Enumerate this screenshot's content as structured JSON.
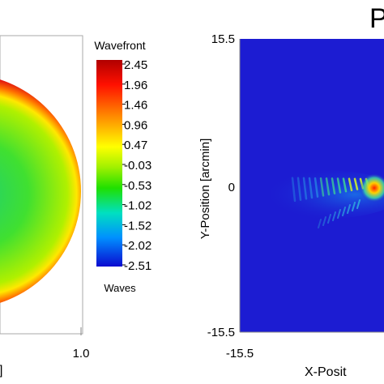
{
  "chart_data": [
    {
      "type": "heatmap",
      "title": "",
      "colorbar": {
        "title": "Wavefront",
        "unit": "Waves",
        "ticks": [
          "2.45",
          "1.96",
          "1.46",
          "0.96",
          "0.47",
          "-0.03",
          "-0.53",
          "-1.02",
          "-1.52",
          "-2.02",
          "-2.51"
        ],
        "range": [
          -2.51,
          2.45
        ],
        "colors": [
          "#0a0ad0",
          "#0090ff",
          "#00e0c0",
          "#00e000",
          "#80f000",
          "#ffff00",
          "#ff9000",
          "#ff0000",
          "#b00000"
        ]
      },
      "x_axis": {
        "tick_labels": [
          "1.0"
        ],
        "label_fragment": "]"
      },
      "shape": "circular pupil, partially cropped at left"
    },
    {
      "type": "heatmap",
      "title": "P",
      "xlabel": "X-Posit",
      "ylabel": "Y-Position [arcmin]",
      "x_ticks": [
        "-15.5"
      ],
      "y_ticks": [
        "15.5",
        "0",
        "-15.5"
      ],
      "xlim": [
        -15.5,
        15.5
      ],
      "ylim": [
        -15.5,
        15.5
      ],
      "background_color": "#1c1cd2",
      "feature": "diffraction fringe pattern centred near the right edge at y = 0"
    }
  ]
}
